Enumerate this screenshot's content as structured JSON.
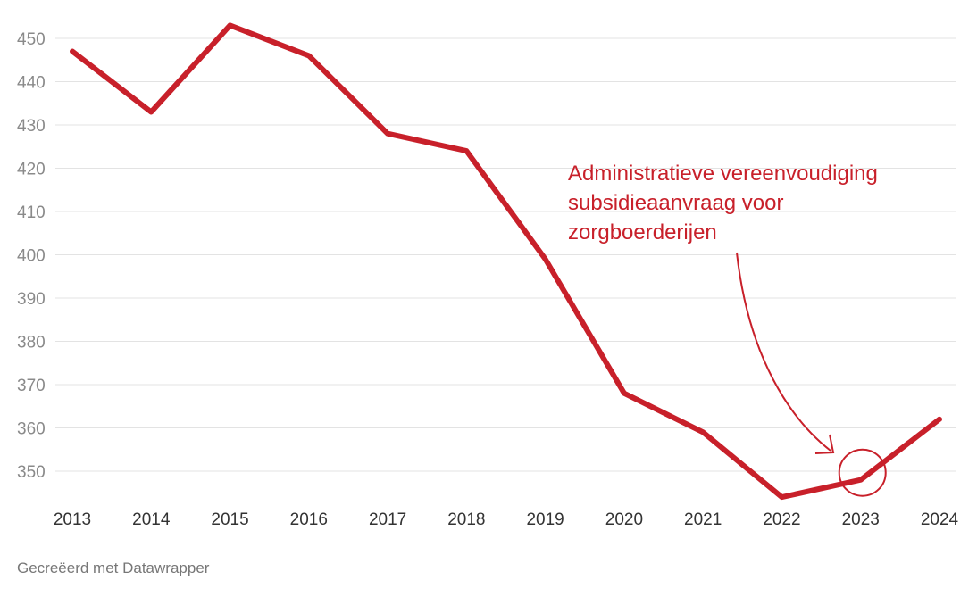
{
  "chart_data": {
    "type": "line",
    "title": "",
    "xlabel": "",
    "ylabel": "",
    "x": [
      "2013",
      "2014",
      "2015",
      "2016",
      "2017",
      "2018",
      "2019",
      "2020",
      "2021",
      "2022",
      "2023",
      "2024"
    ],
    "series": [
      {
        "values": [
          447,
          433,
          453,
          446,
          428,
          424,
          399,
          368,
          359,
          344,
          348,
          362
        ]
      }
    ],
    "y_ticks": [
      350,
      360,
      370,
      380,
      390,
      400,
      410,
      420,
      430,
      440,
      450
    ],
    "ylim": [
      343,
      455
    ],
    "grid": true,
    "annotation": {
      "lines": [
        "Administratieve vereenvoudiging",
        "subsidieaanvraag voor",
        "zorgboerderijen"
      ],
      "target": "2023"
    }
  },
  "colors": {
    "line": "#c8202a",
    "annotation": "#c8202a",
    "grid": "#e3e3e3",
    "axis_text": "#8a8a8a",
    "x_text": "#333333"
  },
  "footer": {
    "credit": "Gecreëerd met Datawrapper"
  }
}
